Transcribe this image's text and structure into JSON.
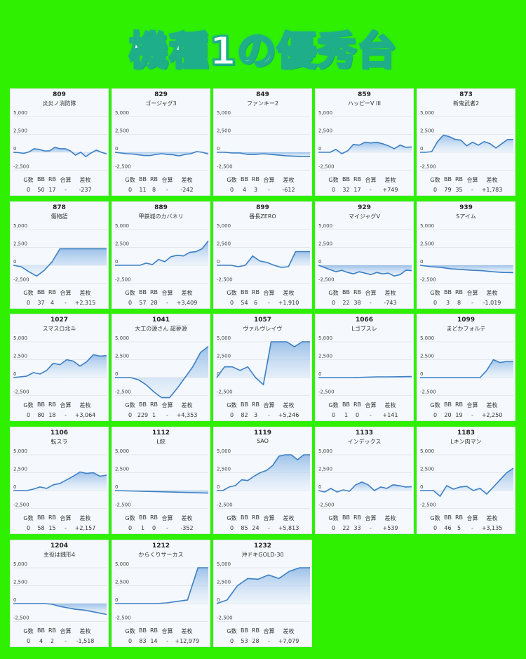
{
  "title": "機種1の優秀台",
  "stat_labels": [
    "G数",
    "BB",
    "RB",
    "合算",
    "差枚"
  ],
  "y_ticks": [
    "5,000",
    "2,500",
    "0",
    "-2,500"
  ],
  "colors": {
    "background": "#2ef000",
    "line": "#3b7fc4",
    "fill": "#a9c9ec"
  },
  "chart_data": {
    "type": "area",
    "ylim": [
      -3000,
      5000
    ],
    "grid": true,
    "machines": [
      {
        "number": "809",
        "name": "炎炎ノ消防隊",
        "g": "0",
        "bb": "50",
        "rb": "17",
        "total": "-",
        "diff": "-237",
        "values": [
          0,
          -50,
          -150,
          50,
          500,
          400,
          200,
          200,
          700,
          500,
          500,
          200,
          -400,
          0,
          -600,
          -100,
          300,
          0,
          -237
        ]
      },
      {
        "number": "829",
        "name": "ゴージャグ3",
        "g": "0",
        "bb": "11",
        "rb": "8",
        "total": "-",
        "diff": "-242",
        "values": [
          0,
          -100,
          -200,
          -250,
          -350,
          -450,
          -450,
          -300,
          -200,
          -300,
          -350,
          -500,
          -300,
          -200,
          100,
          0,
          -242
        ]
      },
      {
        "number": "849",
        "name": "ファンキー2",
        "g": "0",
        "bb": "4",
        "rb": "3",
        "total": "-",
        "diff": "-612",
        "values": [
          0,
          0,
          -100,
          -100,
          -300,
          -300,
          -200,
          -300,
          -400,
          -500,
          -550,
          -600,
          -612
        ]
      },
      {
        "number": "859",
        "name": "ハッピーV III",
        "g": "0",
        "bb": "32",
        "rb": "17",
        "total": "-",
        "diff": "+749",
        "values": [
          0,
          0,
          0,
          400,
          -200,
          200,
          1100,
          1000,
          1400,
          1300,
          1400,
          1200,
          900,
          500,
          1000,
          700,
          749
        ]
      },
      {
        "number": "873",
        "name": "新鬼武者2",
        "g": "0",
        "bb": "79",
        "rb": "35",
        "total": "-",
        "diff": "+1,783",
        "values": [
          0,
          0,
          100,
          1500,
          2400,
          2200,
          1800,
          1700,
          900,
          1400,
          1000,
          1500,
          1200,
          600,
          1200,
          1783,
          1783
        ]
      },
      {
        "number": "878",
        "name": "傷物語",
        "g": "0",
        "bb": "37",
        "rb": "4",
        "total": "-",
        "diff": "+2,315",
        "values": [
          0,
          -200,
          -900,
          -1500,
          -700,
          500,
          2315,
          2315,
          2315,
          2315,
          2315,
          2315,
          2315
        ]
      },
      {
        "number": "889",
        "name": "甲鉄城のカバネリ",
        "g": "0",
        "bb": "57",
        "rb": "28",
        "total": "-",
        "diff": "+3,409",
        "values": [
          0,
          0,
          0,
          0,
          0,
          300,
          100,
          800,
          500,
          1200,
          1400,
          1300,
          1800,
          1900,
          2300,
          3409
        ]
      },
      {
        "number": "899",
        "name": "番長ZERO",
        "g": "0",
        "bb": "54",
        "rb": "6",
        "total": "-",
        "diff": "+1,910",
        "values": [
          0,
          0,
          0,
          -200,
          0,
          1300,
          600,
          400,
          0,
          -300,
          -200,
          1910,
          1910,
          1910
        ]
      },
      {
        "number": "929",
        "name": "マイジャグV",
        "g": "0",
        "bb": "22",
        "rb": "38",
        "total": "-",
        "diff": "-743",
        "values": [
          0,
          -300,
          -600,
          -900,
          -700,
          -1000,
          -1200,
          -900,
          -1100,
          -1300,
          -1000,
          -1200,
          -1100,
          -1500,
          -1300,
          -700,
          -743
        ]
      },
      {
        "number": "939",
        "name": "Sアイム",
        "g": "0",
        "bb": "3",
        "rb": "8",
        "total": "-",
        "diff": "-1,019",
        "values": [
          0,
          -200,
          -300,
          -500,
          -600,
          -700,
          -750,
          -900,
          -1000,
          -1019
        ]
      },
      {
        "number": "1027",
        "name": "スマスロ北斗",
        "g": "0",
        "bb": "80",
        "rb": "18",
        "total": "-",
        "diff": "+3,064",
        "values": [
          0,
          100,
          200,
          700,
          500,
          1000,
          2000,
          1800,
          2500,
          2300,
          1600,
          2200,
          3200,
          3000,
          3064
        ]
      },
      {
        "number": "1041",
        "name": "大工の源さん 超夢源",
        "g": "0",
        "bb": "229",
        "rb": "1",
        "total": "-",
        "diff": "+4,353",
        "values": [
          0,
          0,
          0,
          -300,
          -1000,
          -2000,
          -2800,
          -2800,
          -1500,
          0,
          1500,
          3500,
          4353
        ]
      },
      {
        "number": "1057",
        "name": "ヴァルヴレイヴ",
        "g": "0",
        "bb": "82",
        "rb": "3",
        "total": "-",
        "diff": "+5,246",
        "values": [
          0,
          1500,
          1500,
          1000,
          1500,
          0,
          -1000,
          5000,
          5000,
          5000,
          4300,
          5000,
          5246
        ]
      },
      {
        "number": "1066",
        "name": "Lゴブスレ",
        "g": "0",
        "bb": "1",
        "rb": "0",
        "total": "-",
        "diff": "+141",
        "values": [
          0,
          0,
          0,
          0,
          50,
          100,
          100,
          120,
          141
        ]
      },
      {
        "number": "1099",
        "name": "まどかフォルテ",
        "g": "0",
        "bb": "20",
        "rb": "19",
        "total": "-",
        "diff": "+2,250",
        "values": [
          0,
          0,
          0,
          0,
          0,
          0,
          0,
          0,
          0,
          0,
          1000,
          2500,
          2100,
          2250,
          2250
        ]
      },
      {
        "number": "1106",
        "name": "転スラ",
        "g": "0",
        "bb": "58",
        "rb": "15",
        "total": "-",
        "diff": "+2,157",
        "values": [
          0,
          0,
          0,
          200,
          500,
          300,
          800,
          1000,
          1500,
          2000,
          2600,
          2400,
          2500,
          2000,
          2157
        ]
      },
      {
        "number": "1112",
        "name": "L銃",
        "g": "0",
        "bb": "1",
        "rb": "0",
        "total": "-",
        "diff": "-352",
        "values": [
          0,
          -50,
          -100,
          -150,
          -200,
          -250,
          -300,
          -352
        ]
      },
      {
        "number": "1119",
        "name": "SAO",
        "g": "0",
        "bb": "85",
        "rb": "24",
        "total": "-",
        "diff": "+5,813",
        "values": [
          0,
          0,
          500,
          700,
          1500,
          1400,
          2000,
          2500,
          2800,
          3500,
          4800,
          5000,
          5000,
          4300,
          5000,
          5813
        ]
      },
      {
        "number": "1133",
        "name": "インデックス",
        "g": "0",
        "bb": "22",
        "rb": "33",
        "total": "-",
        "diff": "+539",
        "values": [
          0,
          -200,
          300,
          -200,
          100,
          -100,
          800,
          1200,
          800,
          0,
          500,
          300,
          800,
          700,
          500,
          539
        ]
      },
      {
        "number": "1183",
        "name": "Lキン肉マン",
        "g": "0",
        "bb": "46",
        "rb": "5",
        "total": "-",
        "diff": "+3,135",
        "values": [
          0,
          0,
          0,
          -800,
          700,
          200,
          500,
          600,
          0,
          300,
          -500,
          500,
          1500,
          2500,
          3135
        ]
      },
      {
        "number": "1204",
        "name": "主役は銭形4",
        "g": "0",
        "bb": "4",
        "rb": "2",
        "total": "-",
        "diff": "-1,518",
        "values": [
          0,
          0,
          0,
          0,
          0,
          -100,
          -400,
          -600,
          -800,
          -900,
          -1100,
          -1300,
          -1518
        ]
      },
      {
        "number": "1212",
        "name": "からくりサーカス",
        "g": "0",
        "bb": "83",
        "rb": "14",
        "total": "-",
        "diff": "+12,979",
        "values": [
          0,
          0,
          0,
          0,
          0,
          100,
          300,
          500,
          12979,
          12979
        ]
      },
      {
        "number": "1232",
        "name": "沖ドキGOLD-30",
        "g": "0",
        "bb": "53",
        "rb": "28",
        "total": "-",
        "diff": "+7,079",
        "values": [
          0,
          500,
          2500,
          3500,
          3400,
          4000,
          3500,
          4500,
          7079,
          7079
        ]
      }
    ]
  }
}
